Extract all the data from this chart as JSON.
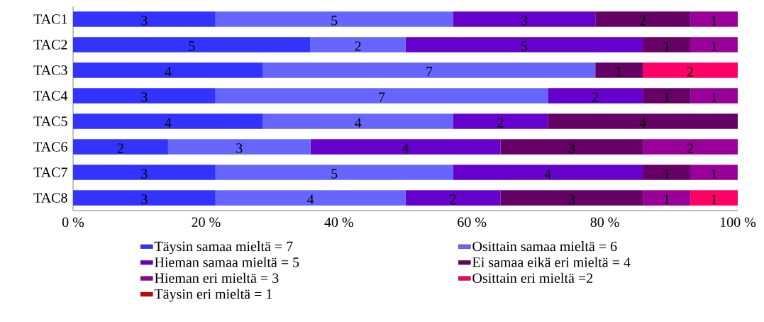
{
  "chart_data": {
    "type": "bar",
    "orientation": "horizontal",
    "stacked": true,
    "categories": [
      "TAC1",
      "TAC2",
      "TAC3",
      "TAC4",
      "TAC5",
      "TAC6",
      "TAC7",
      "TAC8"
    ],
    "xlim": [
      0,
      100
    ],
    "xticks": [
      {
        "value": 0,
        "label": "0 %"
      },
      {
        "value": 20,
        "label": "20 %"
      },
      {
        "value": 40,
        "label": "40 %"
      },
      {
        "value": 60,
        "label": "60 %"
      },
      {
        "value": 80,
        "label": "80 %"
      },
      {
        "value": 100,
        "label": "100 %"
      }
    ],
    "grid": false,
    "legend": "bottom",
    "series": [
      {
        "name": "Täysin samaa mieltä = 7",
        "color": "#3333ff",
        "values": [
          21.43,
          35.71,
          28.57,
          21.43,
          28.57,
          14.29,
          21.43,
          21.43
        ]
      },
      {
        "name": "Osittain samaa mieltä = 6",
        "color": "#6666ff",
        "values": [
          35.71,
          14.29,
          50,
          50,
          28.57,
          21.43,
          35.71,
          28.57
        ]
      },
      {
        "name": "Hieman samaa mieltä = 5",
        "color": "#6600cc",
        "values": [
          21.43,
          35.71,
          0,
          14.29,
          14.29,
          28.57,
          28.57,
          14.29
        ]
      },
      {
        "name": "Ei samaa eikä eri mieltä = 4",
        "color": "#660066",
        "values": [
          14.29,
          7.14,
          7.14,
          7.14,
          28.57,
          21.43,
          7.14,
          21.43
        ]
      },
      {
        "name": "Hieman eri mieltä = 3",
        "color": "#990099",
        "values": [
          7.14,
          7.14,
          0,
          7.14,
          0,
          14.28,
          7.14,
          7.14
        ]
      },
      {
        "name": "Osittain eri mieltä =2",
        "color": "#ff0066",
        "values": [
          0,
          0,
          14.29,
          0,
          0,
          0,
          0,
          7.14
        ]
      },
      {
        "name": "Täysin eri mieltä = 1",
        "color": "#cc0000",
        "values": [
          0,
          0,
          0,
          0,
          0,
          0,
          0,
          0
        ]
      }
    ],
    "annotations": [
      {
        "text": "3",
        "x": 10.71,
        "y": "TAC1"
      },
      {
        "text": "5",
        "x": 39.29,
        "y": "TAC1"
      },
      {
        "text": "3",
        "x": 67.86,
        "y": "TAC1"
      },
      {
        "text": "2",
        "x": 85.71,
        "y": "TAC1"
      },
      {
        "text": "1",
        "x": 96.43,
        "y": "TAC1"
      },
      {
        "text": "5",
        "x": 17.86,
        "y": "TAC2"
      },
      {
        "text": "2",
        "x": 42.86,
        "y": "TAC2"
      },
      {
        "text": "5",
        "x": 67.86,
        "y": "TAC2"
      },
      {
        "text": "1",
        "x": 89.29,
        "y": "TAC2"
      },
      {
        "text": "1",
        "x": 96.43,
        "y": "TAC2"
      },
      {
        "text": "4",
        "x": 14.29,
        "y": "TAC3"
      },
      {
        "text": "7",
        "x": 53.57,
        "y": "TAC3"
      },
      {
        "text": "1",
        "x": 82.14,
        "y": "TAC3"
      },
      {
        "text": "2",
        "x": 92.86,
        "y": "TAC3"
      },
      {
        "text": "3",
        "x": 10.71,
        "y": "TAC4"
      },
      {
        "text": "7",
        "x": 46.43,
        "y": "TAC4"
      },
      {
        "text": "2",
        "x": 78.57,
        "y": "TAC4"
      },
      {
        "text": "1",
        "x": 89.29,
        "y": "TAC4"
      },
      {
        "text": "1",
        "x": 96.43,
        "y": "TAC4"
      },
      {
        "text": "4",
        "x": 14.29,
        "y": "TAC5"
      },
      {
        "text": "4",
        "x": 42.86,
        "y": "TAC5"
      },
      {
        "text": "2",
        "x": 64.29,
        "y": "TAC5"
      },
      {
        "text": "4",
        "x": 85.71,
        "y": "TAC5"
      },
      {
        "text": "2",
        "x": 7.14,
        "y": "TAC6"
      },
      {
        "text": "3",
        "x": 25,
        "y": "TAC6"
      },
      {
        "text": "4",
        "x": 50,
        "y": "TAC6"
      },
      {
        "text": "3",
        "x": 75,
        "y": "TAC6"
      },
      {
        "text": "2",
        "x": 92.86,
        "y": "TAC6"
      },
      {
        "text": "3",
        "x": 10.71,
        "y": "TAC7"
      },
      {
        "text": "5",
        "x": 39.29,
        "y": "TAC7"
      },
      {
        "text": "4",
        "x": 71.43,
        "y": "TAC7"
      },
      {
        "text": "1",
        "x": 89.29,
        "y": "TAC7"
      },
      {
        "text": "1",
        "x": 96.43,
        "y": "TAC7"
      },
      {
        "text": "3",
        "x": 10.71,
        "y": "TAC8"
      },
      {
        "text": "4",
        "x": 35.71,
        "y": "TAC8"
      },
      {
        "text": "2",
        "x": 57.14,
        "y": "TAC8"
      },
      {
        "text": "3",
        "x": 75,
        "y": "TAC8"
      },
      {
        "text": "1",
        "x": 89.29,
        "y": "TAC8"
      },
      {
        "text": "1",
        "x": 96.43,
        "y": "TAC8"
      }
    ]
  }
}
